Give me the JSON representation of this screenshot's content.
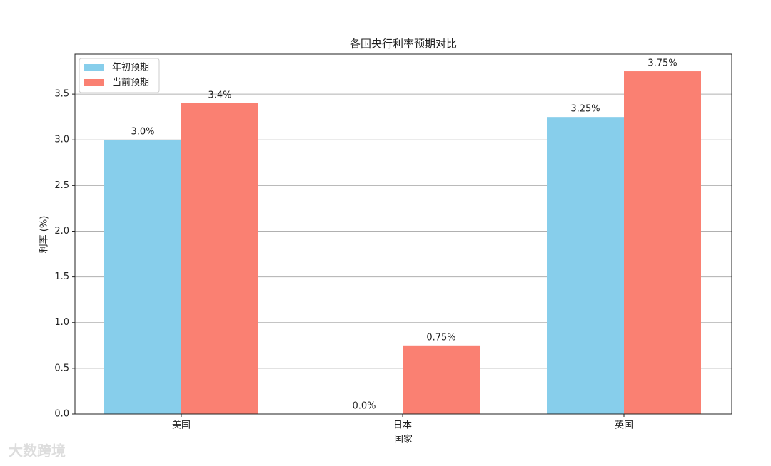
{
  "chart_data": {
    "type": "bar",
    "title": "各国央行利率预期对比",
    "x_label": "国家",
    "y_label": "利率 (%)",
    "categories": [
      "美国",
      "日本",
      "英国"
    ],
    "series": [
      {
        "name": "年初预期",
        "color": "#87ceeb",
        "values": [
          3.0,
          0.0,
          3.25
        ],
        "value_labels": [
          "3.0%",
          "0.0%",
          "3.25%"
        ]
      },
      {
        "name": "当前预期",
        "color": "#fa8072",
        "values": [
          3.4,
          0.75,
          3.75
        ],
        "value_labels": [
          "3.4%",
          "0.75%",
          "3.75%"
        ]
      }
    ],
    "ylim": [
      0,
      3.9375
    ],
    "yticks": [
      {
        "value": 0,
        "label": "0.0"
      },
      0.5,
      {
        "value": 1,
        "label": "1.0"
      },
      1.5,
      {
        "value": 2,
        "label": "2.0"
      },
      2.5,
      {
        "value": 3,
        "label": "3.0"
      },
      3.5
    ],
    "grid": true,
    "legend": "upper-left",
    "watermark": "大数跨境"
  }
}
